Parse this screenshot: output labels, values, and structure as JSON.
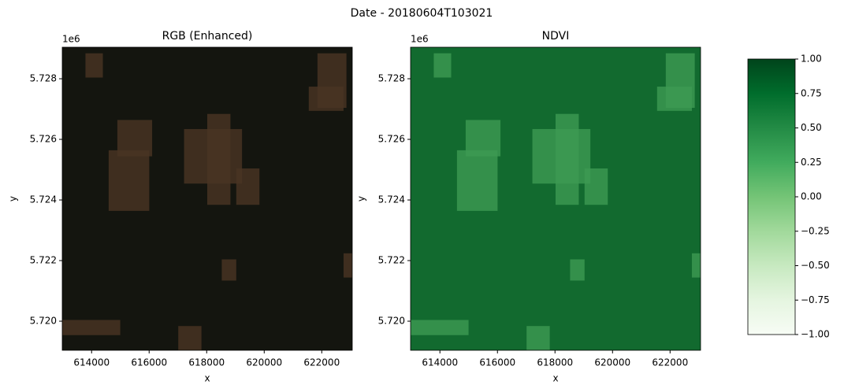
{
  "title": "Date - 20180604T103021",
  "chart_data": [
    {
      "type": "image",
      "title": "RGB (Enhanced)",
      "xlabel": "x",
      "ylabel": "y",
      "offset_label": "1e6",
      "color": "#14150f",
      "patch_color": "#4a3423",
      "xlim": [
        612980,
        623060
      ],
      "ylim": [
        5719040,
        5729040
      ],
      "xticks": [
        614000,
        616000,
        618000,
        620000,
        622000
      ],
      "yticks": [
        {
          "value": 5720000,
          "label": "5.720"
        },
        {
          "value": 5722000,
          "label": "5.722"
        },
        {
          "value": 5724000,
          "label": "5.724"
        },
        {
          "value": 5726000,
          "label": "5.726"
        },
        {
          "value": 5728000,
          "label": "5.728"
        }
      ]
    },
    {
      "type": "image",
      "title": "NDVI",
      "xlabel": "x",
      "ylabel": "y",
      "offset_label": "1e6",
      "color": "#126a2f",
      "patch_color": "#3d9a52",
      "xlim": [
        612980,
        623060
      ],
      "ylim": [
        5719040,
        5729040
      ],
      "xticks": [
        614000,
        616000,
        618000,
        620000,
        622000
      ],
      "yticks": [
        {
          "value": 5720000,
          "label": "5.720"
        },
        {
          "value": 5722000,
          "label": "5.722"
        },
        {
          "value": 5724000,
          "label": "5.724"
        },
        {
          "value": 5726000,
          "label": "5.726"
        },
        {
          "value": 5728000,
          "label": "5.728"
        }
      ]
    },
    {
      "type": "colorbar",
      "colormap": "Greens",
      "colors": [
        "#f7fcf5",
        "#e5f5e0",
        "#c7e9c0",
        "#a1d99b",
        "#74c476",
        "#41ab5d",
        "#238b45",
        "#006d2c",
        "#00441b"
      ],
      "ylim": [
        -1,
        1
      ],
      "yticks": [
        {
          "value": -1,
          "label": "−1.00"
        },
        {
          "value": -0.75,
          "label": "−0.75"
        },
        {
          "value": -0.5,
          "label": "−0.50"
        },
        {
          "value": -0.25,
          "label": "−0.25"
        },
        {
          "value": 0,
          "label": "0.00"
        },
        {
          "value": 0.25,
          "label": "0.25"
        },
        {
          "value": 0.5,
          "label": "0.50"
        },
        {
          "value": 0.75,
          "label": "0.75"
        },
        {
          "value": 1,
          "label": "1.00"
        }
      ]
    }
  ]
}
